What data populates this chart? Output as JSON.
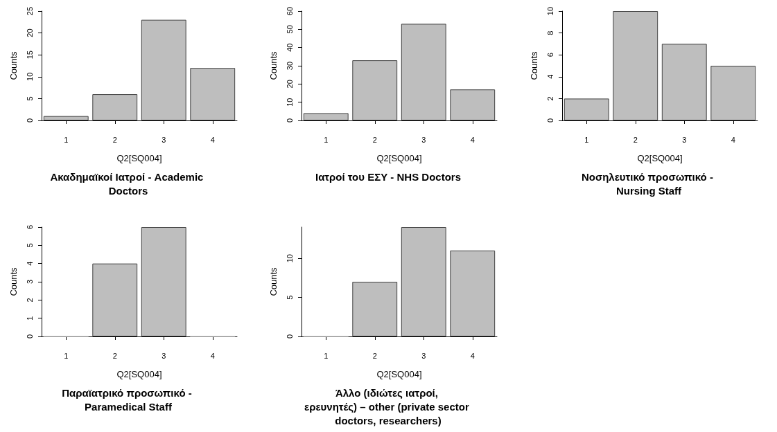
{
  "chart_data": [
    {
      "type": "bar",
      "title": "Ακαδημαϊκοί Ιατροί - Academic Doctors",
      "xlabel": "Q2[SQ004]",
      "ylabel": "Counts",
      "categories": [
        "1",
        "2",
        "3",
        "4"
      ],
      "values": [
        1,
        6,
        23,
        12
      ],
      "color": "#bebebe",
      "ylim": [
        0,
        25
      ],
      "yticks": [
        0,
        5,
        10,
        15,
        20,
        25
      ]
    },
    {
      "type": "bar",
      "title": "Ιατροί του ΕΣΥ - NHS Doctors",
      "xlabel": "Q2[SQ004]",
      "ylabel": "Counts",
      "categories": [
        "1",
        "2",
        "3",
        "4"
      ],
      "values": [
        4,
        33,
        53,
        17
      ],
      "color": "#bebebe",
      "ylim": [
        0,
        60
      ],
      "yticks": [
        0,
        10,
        20,
        30,
        40,
        50,
        60
      ]
    },
    {
      "type": "bar",
      "title": "Νοσηλευτικό προσωπικό - Nursing Staff",
      "xlabel": "Q2[SQ004]",
      "ylabel": "Counts",
      "categories": [
        "1",
        "2",
        "3",
        "4"
      ],
      "values": [
        2,
        10,
        7,
        5
      ],
      "color": "#bebebe",
      "ylim": [
        0,
        10
      ],
      "yticks": [
        0,
        2,
        4,
        6,
        8,
        10
      ]
    },
    {
      "type": "bar",
      "title": "Παραϊατρικό προσωπικό - Paramedical Staff",
      "xlabel": "Q2[SQ004]",
      "ylabel": "Counts",
      "categories": [
        "1",
        "2",
        "3",
        "4"
      ],
      "values": [
        0,
        4,
        6,
        0
      ],
      "color": "#bebebe",
      "ylim": [
        0,
        6
      ],
      "yticks": [
        0,
        1,
        2,
        3,
        4,
        5,
        6
      ]
    },
    {
      "type": "bar",
      "title": "Άλλο (ιδιώτες ιατροί, ερευνητές) – other (private sector doctors, researchers)",
      "xlabel": "Q2[SQ004]",
      "ylabel": "Counts",
      "categories": [
        "1",
        "2",
        "3",
        "4"
      ],
      "values": [
        0,
        7,
        14,
        11
      ],
      "color": "#bebebe",
      "ylim": [
        0,
        14
      ],
      "yticks": [
        0,
        5,
        10
      ]
    }
  ]
}
